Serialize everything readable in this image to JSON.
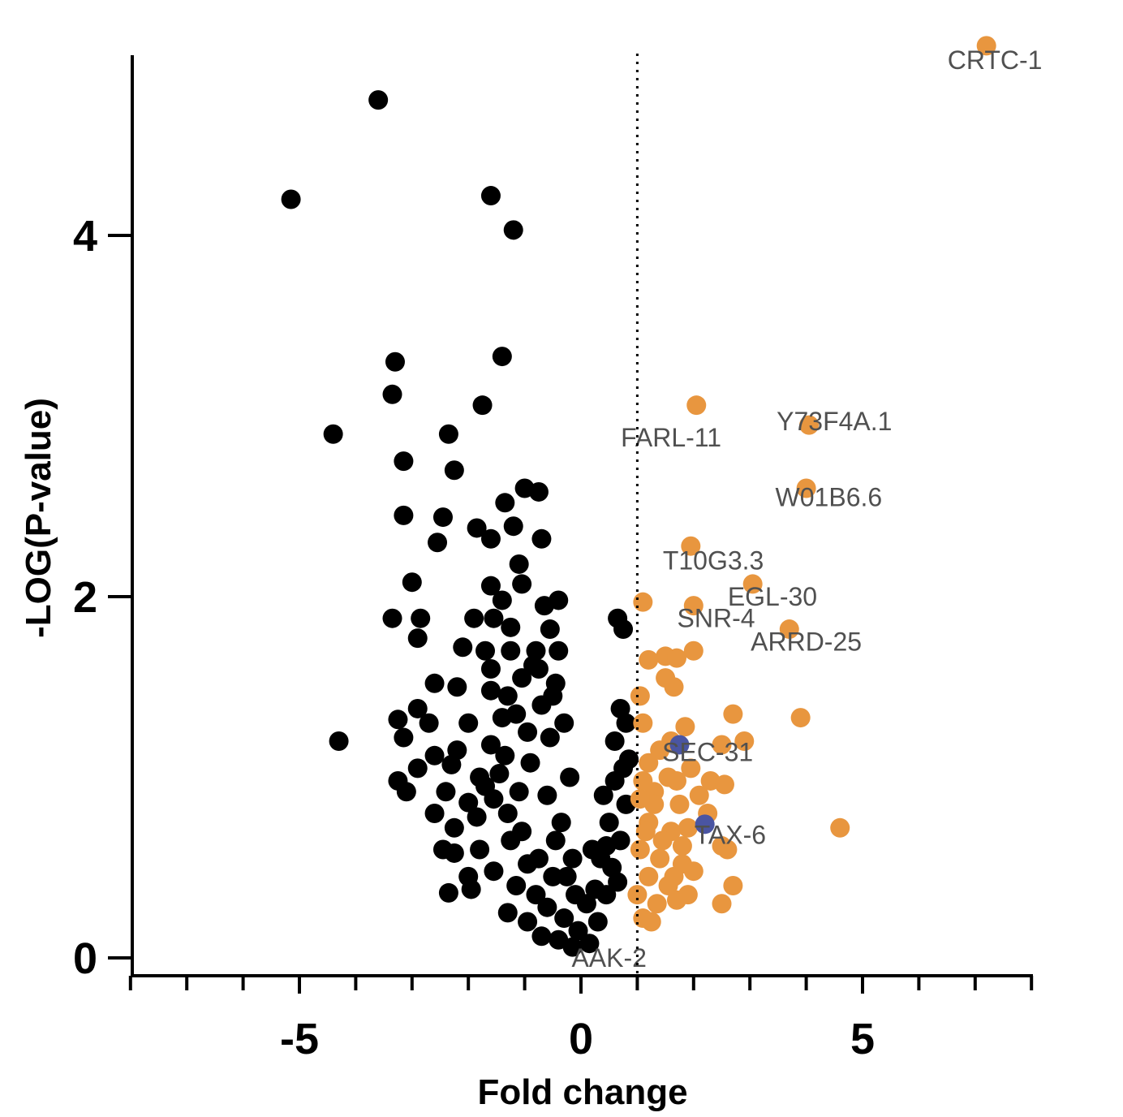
{
  "chart_data": {
    "type": "scatter",
    "xlabel": "Fold change",
    "ylabel": "-LOG(P-value)",
    "xlim": [
      -8,
      8
    ],
    "ylim": [
      0,
      5
    ],
    "x_ticks": [
      -5,
      0,
      5
    ],
    "y_ticks": [
      0,
      2,
      4
    ],
    "threshold_line_x": 1,
    "grid": false,
    "colors": {
      "down": "#000000",
      "up": "#E8963F",
      "highlight": "#4A55A2",
      "label": "#505050"
    },
    "down_points": [
      [
        -5.15,
        4.2
      ],
      [
        -3.6,
        4.75
      ],
      [
        -1.6,
        4.22
      ],
      [
        -1.2,
        4.03
      ],
      [
        -3.3,
        3.3
      ],
      [
        -1.4,
        3.33
      ],
      [
        -3.35,
        3.12
      ],
      [
        -1.75,
        3.06
      ],
      [
        -4.4,
        2.9
      ],
      [
        -2.35,
        2.9
      ],
      [
        -3.15,
        2.75
      ],
      [
        -2.25,
        2.7
      ],
      [
        -1.0,
        2.6
      ],
      [
        -0.75,
        2.58
      ],
      [
        -1.35,
        2.52
      ],
      [
        -3.15,
        2.45
      ],
      [
        -2.45,
        2.44
      ],
      [
        -1.85,
        2.38
      ],
      [
        -1.2,
        2.39
      ],
      [
        -0.7,
        2.32
      ],
      [
        -1.6,
        2.32
      ],
      [
        -2.55,
        2.3
      ],
      [
        -1.1,
        2.18
      ],
      [
        -3.0,
        2.08
      ],
      [
        -1.6,
        2.06
      ],
      [
        -1.05,
        2.07
      ],
      [
        -0.4,
        1.98
      ],
      [
        -0.65,
        1.95
      ],
      [
        -1.4,
        1.98
      ],
      [
        -3.35,
        1.88
      ],
      [
        -2.85,
        1.88
      ],
      [
        -1.9,
        1.88
      ],
      [
        -1.55,
        1.88
      ],
      [
        -1.25,
        1.83
      ],
      [
        -0.55,
        1.82
      ],
      [
        -2.9,
        1.77
      ],
      [
        -2.1,
        1.72
      ],
      [
        -1.7,
        1.7
      ],
      [
        -1.25,
        1.7
      ],
      [
        -0.8,
        1.7
      ],
      [
        -0.4,
        1.7
      ],
      [
        -0.85,
        1.62
      ],
      [
        -1.05,
        1.55
      ],
      [
        -0.45,
        1.52
      ],
      [
        -2.6,
        1.52
      ],
      [
        -2.2,
        1.5
      ],
      [
        -1.6,
        1.48
      ],
      [
        -1.3,
        1.45
      ],
      [
        -0.7,
        1.4
      ],
      [
        -2.9,
        1.38
      ],
      [
        -2.7,
        1.3
      ],
      [
        -2.0,
        1.3
      ],
      [
        -1.4,
        1.33
      ],
      [
        -3.25,
        1.32
      ],
      [
        -3.15,
        1.22
      ],
      [
        -1.6,
        1.18
      ],
      [
        -2.2,
        1.15
      ],
      [
        -4.3,
        1.2
      ],
      [
        -2.9,
        1.05
      ],
      [
        -2.6,
        1.12
      ],
      [
        -2.3,
        1.07
      ],
      [
        -1.8,
        1.0
      ],
      [
        -1.45,
        1.02
      ],
      [
        -3.25,
        0.98
      ],
      [
        -3.1,
        0.92
      ],
      [
        -2.4,
        0.92
      ],
      [
        -2.0,
        0.86
      ],
      [
        -1.55,
        0.88
      ],
      [
        -1.1,
        0.92
      ],
      [
        -2.6,
        0.8
      ],
      [
        -2.25,
        0.72
      ],
      [
        -1.85,
        0.78
      ],
      [
        -1.3,
        0.8
      ],
      [
        -2.45,
        0.6
      ],
      [
        -2.25,
        0.58
      ],
      [
        -1.8,
        0.6
      ],
      [
        -1.25,
        0.65
      ],
      [
        -2.0,
        0.45
      ],
      [
        -1.55,
        0.48
      ],
      [
        -0.95,
        0.52
      ],
      [
        -2.35,
        0.36
      ],
      [
        -1.95,
        0.38
      ],
      [
        -1.15,
        0.4
      ],
      [
        -0.8,
        0.35
      ],
      [
        -1.3,
        0.25
      ],
      [
        -0.95,
        0.2
      ],
      [
        -0.6,
        0.28
      ],
      [
        -0.3,
        0.22
      ],
      [
        -0.7,
        0.12
      ],
      [
        -0.4,
        0.1
      ],
      [
        -0.15,
        0.06
      ],
      [
        -0.5,
        1.45
      ],
      [
        -0.3,
        1.3
      ],
      [
        -0.2,
        1.0
      ],
      [
        -0.6,
        0.9
      ],
      [
        -0.35,
        0.75
      ],
      [
        -0.15,
        0.55
      ],
      [
        -0.1,
        0.35
      ],
      [
        -0.75,
        1.6
      ],
      [
        -0.55,
        1.22
      ],
      [
        -0.9,
        1.08
      ],
      [
        -1.05,
        0.7
      ],
      [
        -0.75,
        0.55
      ],
      [
        -0.5,
        0.45
      ],
      [
        0.15,
        0.08
      ],
      [
        0.3,
        0.2
      ],
      [
        0.45,
        0.35
      ],
      [
        0.55,
        0.5
      ],
      [
        0.7,
        0.65
      ],
      [
        0.8,
        0.85
      ],
      [
        0.75,
        1.05
      ],
      [
        0.6,
        1.2
      ],
      [
        0.8,
        1.3
      ],
      [
        0.7,
        1.38
      ],
      [
        0.65,
        1.88
      ],
      [
        0.75,
        1.82
      ],
      [
        0.85,
        1.1
      ],
      [
        0.5,
        0.75
      ],
      [
        0.35,
        0.55
      ],
      [
        0.25,
        0.38
      ],
      [
        0.6,
        0.98
      ],
      [
        0.4,
        0.9
      ],
      [
        0.45,
        0.62
      ],
      [
        0.65,
        0.42
      ],
      [
        0.2,
        0.6
      ],
      [
        0.1,
        0.3
      ],
      [
        -0.05,
        0.15
      ],
      [
        -0.25,
        0.45
      ],
      [
        -1.6,
        1.6
      ],
      [
        -1.15,
        1.35
      ],
      [
        -0.95,
        1.25
      ],
      [
        -1.35,
        1.12
      ],
      [
        -1.7,
        0.95
      ],
      [
        -0.45,
        0.65
      ]
    ],
    "up_points": [
      [
        7.2,
        5.05
      ],
      [
        2.05,
        3.06
      ],
      [
        4.05,
        2.95
      ],
      [
        4.0,
        2.6
      ],
      [
        1.95,
        2.28
      ],
      [
        3.05,
        2.07
      ],
      [
        1.1,
        1.97
      ],
      [
        2.0,
        1.95
      ],
      [
        3.7,
        1.82
      ],
      [
        1.2,
        1.65
      ],
      [
        1.5,
        1.67
      ],
      [
        1.7,
        1.66
      ],
      [
        2.0,
        1.7
      ],
      [
        1.5,
        1.55
      ],
      [
        1.65,
        1.5
      ],
      [
        1.05,
        1.45
      ],
      [
        2.7,
        1.35
      ],
      [
        3.9,
        1.33
      ],
      [
        1.1,
        1.3
      ],
      [
        1.85,
        1.28
      ],
      [
        1.6,
        1.2
      ],
      [
        2.9,
        1.2
      ],
      [
        1.4,
        1.15
      ],
      [
        2.5,
        1.18
      ],
      [
        1.2,
        1.08
      ],
      [
        1.1,
        0.98
      ],
      [
        1.55,
        1.0
      ],
      [
        1.95,
        1.05
      ],
      [
        2.3,
        0.98
      ],
      [
        2.55,
        0.96
      ],
      [
        2.1,
        0.9
      ],
      [
        1.3,
        0.92
      ],
      [
        1.75,
        0.85
      ],
      [
        2.25,
        0.8
      ],
      [
        1.2,
        0.75
      ],
      [
        1.6,
        0.7
      ],
      [
        1.9,
        0.72
      ],
      [
        4.6,
        0.72
      ],
      [
        2.5,
        0.62
      ],
      [
        2.6,
        0.6
      ],
      [
        1.05,
        0.6
      ],
      [
        1.4,
        0.55
      ],
      [
        1.8,
        0.52
      ],
      [
        2.0,
        0.48
      ],
      [
        1.2,
        0.45
      ],
      [
        1.55,
        0.4
      ],
      [
        1.0,
        0.35
      ],
      [
        1.35,
        0.3
      ],
      [
        1.7,
        0.32
      ],
      [
        2.7,
        0.4
      ],
      [
        2.5,
        0.3
      ],
      [
        1.9,
        0.35
      ],
      [
        1.1,
        0.22
      ],
      [
        1.25,
        0.2
      ],
      [
        1.65,
        0.45
      ],
      [
        1.45,
        0.65
      ],
      [
        1.3,
        0.85
      ],
      [
        1.7,
        0.98
      ],
      [
        1.05,
        0.88
      ],
      [
        1.15,
        0.7
      ],
      [
        1.8,
        0.62
      ]
    ],
    "highlight_points": [
      [
        1.75,
        1.18
      ],
      [
        2.2,
        0.74
      ]
    ],
    "annotations": [
      {
        "text": "CRTC-1",
        "x": 7.35,
        "y": 4.97
      },
      {
        "text": "FARL-11",
        "x": 1.6,
        "y": 2.88
      },
      {
        "text": "Y73F4A.1",
        "x": 4.5,
        "y": 2.97
      },
      {
        "text": "W01B6.6",
        "x": 4.4,
        "y": 2.55
      },
      {
        "text": "T10G3.3",
        "x": 2.35,
        "y": 2.2
      },
      {
        "text": "EGL-30",
        "x": 3.4,
        "y": 2.0
      },
      {
        "text": "SNR-4",
        "x": 2.4,
        "y": 1.88
      },
      {
        "text": "ARRD-25",
        "x": 4.0,
        "y": 1.75
      },
      {
        "text": "SEC-31",
        "x": 2.25,
        "y": 1.14
      },
      {
        "text": "TAX-6",
        "x": 2.65,
        "y": 0.68
      },
      {
        "text": "AAK-2",
        "x": 0.5,
        "y": 0.0
      }
    ]
  }
}
